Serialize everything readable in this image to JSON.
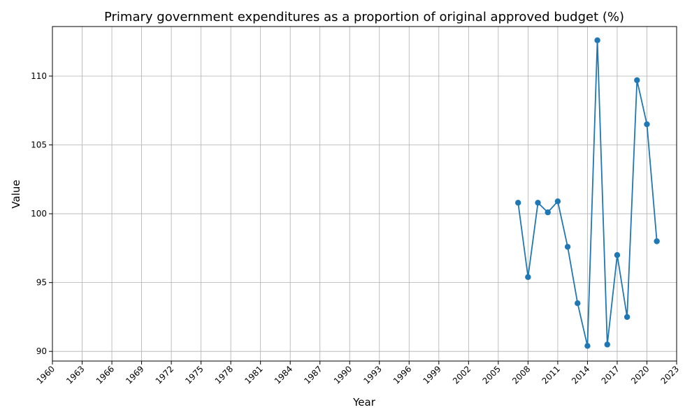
{
  "chart_data": {
    "type": "line",
    "title": "Primary government expenditures as a proportion of original approved budget (%)",
    "xlabel": "Year",
    "ylabel": "Value",
    "xlim": [
      1960,
      2023
    ],
    "ylim": [
      89.3,
      113.6
    ],
    "x_ticks": [
      1960,
      1963,
      1966,
      1969,
      1972,
      1975,
      1978,
      1981,
      1984,
      1987,
      1990,
      1993,
      1996,
      1999,
      2002,
      2005,
      2008,
      2011,
      2014,
      2017,
      2020,
      2023
    ],
    "y_ticks": [
      90,
      95,
      100,
      105,
      110
    ],
    "grid": true,
    "color": "#1f77b4",
    "series": [
      {
        "x": [
          2007,
          2008,
          2009,
          2010,
          2011,
          2012,
          2013,
          2014,
          2015,
          2016,
          2017,
          2018,
          2019,
          2020,
          2021
        ],
        "values": [
          100.8,
          95.4,
          100.8,
          100.1,
          100.9,
          97.6,
          93.5,
          90.4,
          112.6,
          90.5,
          97.0,
          92.5,
          109.7,
          106.5,
          98.0
        ]
      }
    ]
  }
}
